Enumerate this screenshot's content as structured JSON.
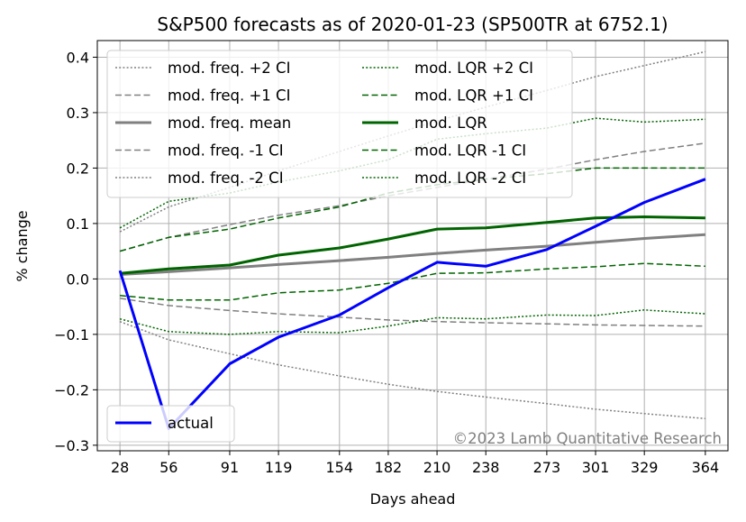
{
  "chart_data": {
    "type": "line",
    "title": "S&P500 forecasts as of 2020-01-23 (SP500TR at 6752.1)",
    "xlabel": "Days ahead",
    "ylabel": "% change",
    "x": [
      28,
      56,
      91,
      119,
      154,
      182,
      210,
      238,
      273,
      301,
      329,
      364
    ],
    "xticks": [
      "28",
      "56",
      "91",
      "119",
      "154",
      "182",
      "210",
      "238",
      "273",
      "301",
      "329",
      "364"
    ],
    "xlim": [
      15,
      377
    ],
    "ylim": [
      -0.31,
      0.43
    ],
    "yticks": [
      -0.3,
      -0.2,
      -0.1,
      0.0,
      0.1,
      0.2,
      0.3,
      0.4
    ],
    "ytick_labels": [
      "−0.3",
      "−0.2",
      "−0.1",
      "0.0",
      "0.1",
      "0.2",
      "0.3",
      "0.4"
    ],
    "grid": true,
    "legend_main_position": "top-left",
    "legend_actual_position": "bottom-left",
    "watermark": "©2023 Lamb Quantitative Research",
    "colors": {
      "freq": "#808080",
      "lqr": "#006400",
      "actual": "#0000ff",
      "grid": "#b0b0b0"
    },
    "series": [
      {
        "name": "mod. freq. +2 CI",
        "group": "freq",
        "style": "dotted",
        "values": [
          0.085,
          0.13,
          0.165,
          0.195,
          0.23,
          0.258,
          0.285,
          0.31,
          0.34,
          0.365,
          0.385,
          0.41
        ]
      },
      {
        "name": "mod. freq. +1 CI",
        "group": "freq",
        "style": "dashed",
        "values": [
          0.05,
          0.075,
          0.098,
          0.115,
          0.132,
          0.15,
          0.165,
          0.18,
          0.198,
          0.215,
          0.23,
          0.245
        ]
      },
      {
        "name": "mod. freq. mean",
        "group": "freq",
        "style": "solid",
        "values": [
          0.008,
          0.013,
          0.02,
          0.026,
          0.033,
          0.039,
          0.046,
          0.052,
          0.059,
          0.066,
          0.073,
          0.08
        ]
      },
      {
        "name": "mod. freq. -1 CI",
        "group": "freq",
        "style": "dashed",
        "values": [
          -0.035,
          -0.048,
          -0.057,
          -0.063,
          -0.069,
          -0.074,
          -0.077,
          -0.079,
          -0.081,
          -0.083,
          -0.084,
          -0.085
        ]
      },
      {
        "name": "mod. freq. -2 CI",
        "group": "freq",
        "style": "dotted",
        "values": [
          -0.077,
          -0.11,
          -0.135,
          -0.155,
          -0.175,
          -0.19,
          -0.203,
          -0.213,
          -0.225,
          -0.235,
          -0.243,
          -0.252
        ]
      },
      {
        "name": "mod. LQR +2 CI",
        "group": "lqr",
        "style": "dotted",
        "values": [
          0.092,
          0.14,
          0.155,
          0.175,
          0.195,
          0.215,
          0.252,
          0.262,
          0.272,
          0.29,
          0.283,
          0.288
        ]
      },
      {
        "name": "mod. LQR +1 CI",
        "group": "lqr",
        "style": "dashed",
        "values": [
          0.05,
          0.075,
          0.09,
          0.11,
          0.13,
          0.155,
          0.17,
          0.18,
          0.19,
          0.2,
          0.2,
          0.2
        ]
      },
      {
        "name": "mod. LQR",
        "group": "lqr",
        "style": "solid",
        "values": [
          0.01,
          0.018,
          0.025,
          0.043,
          0.056,
          0.072,
          0.09,
          0.092,
          0.102,
          0.11,
          0.112,
          0.11
        ]
      },
      {
        "name": "mod. LQR -1 CI",
        "group": "lqr",
        "style": "dashed",
        "values": [
          -0.03,
          -0.038,
          -0.038,
          -0.025,
          -0.02,
          -0.008,
          0.01,
          0.011,
          0.018,
          0.022,
          0.028,
          0.023
        ]
      },
      {
        "name": "mod. LQR -2 CI",
        "group": "lqr",
        "style": "dotted",
        "values": [
          -0.072,
          -0.095,
          -0.1,
          -0.095,
          -0.097,
          -0.085,
          -0.07,
          -0.072,
          -0.065,
          -0.066,
          -0.056,
          -0.063
        ]
      },
      {
        "name": "actual",
        "group": "actual",
        "style": "solid",
        "values": [
          0.015,
          -0.27,
          -0.153,
          -0.105,
          -0.065,
          -0.016,
          0.03,
          0.023,
          0.053,
          0.095,
          0.138,
          0.18
        ]
      }
    ]
  }
}
